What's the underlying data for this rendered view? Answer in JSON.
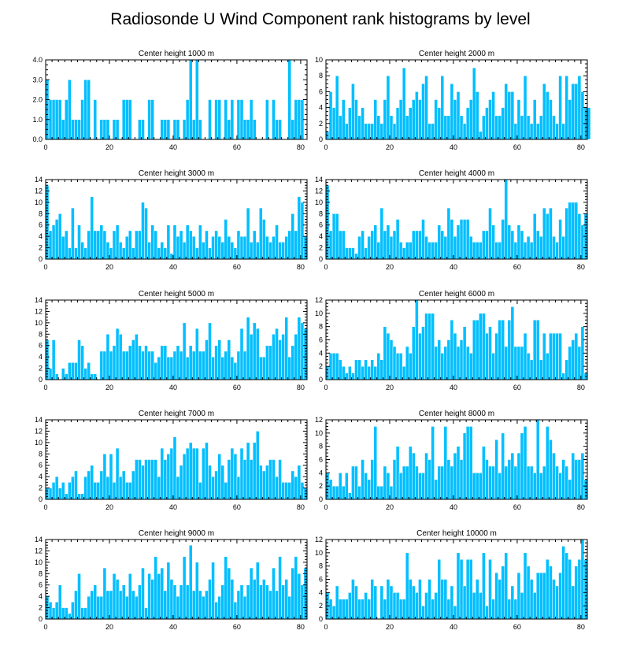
{
  "title": "Radiosonde U Wind Component rank histograms by level",
  "colors": {
    "bar": "#00bfff",
    "axis": "#000000",
    "background": "#ffffff"
  },
  "chart_data": [
    {
      "type": "bar",
      "title": "Center height 1000 m",
      "xlim": [
        0,
        82
      ],
      "xticks": [
        0,
        20,
        40,
        60,
        80
      ],
      "ylim": [
        0,
        4
      ],
      "yticks": [
        0,
        1,
        2,
        3,
        4
      ],
      "ytick_labels": [
        "0.0",
        "1.0",
        "2.0",
        "3.0",
        "4.0"
      ],
      "values": [
        3,
        2,
        2,
        2,
        2,
        1,
        2,
        3,
        1,
        1,
        1,
        2,
        3,
        3,
        0,
        2,
        0,
        1,
        1,
        1,
        0,
        1,
        1,
        0,
        2,
        2,
        2,
        0,
        0,
        1,
        1,
        0,
        2,
        2,
        0,
        0,
        1,
        1,
        1,
        0,
        1,
        1,
        0,
        1,
        2,
        4,
        1,
        4,
        1,
        0,
        0,
        2,
        0,
        2,
        2,
        0,
        2,
        1,
        2,
        0,
        2,
        2,
        1,
        1,
        2,
        1,
        0,
        0,
        0,
        2,
        0,
        2,
        1,
        1,
        0,
        0,
        4,
        1,
        2,
        2,
        2,
        0
      ]
    },
    {
      "type": "bar",
      "title": "Center height 2000 m",
      "xlim": [
        0,
        82
      ],
      "xticks": [
        0,
        20,
        40,
        60,
        80
      ],
      "ylim": [
        0,
        10
      ],
      "yticks": [
        0,
        2,
        4,
        6,
        8,
        10
      ],
      "ytick_labels": [
        "0",
        "2",
        "4",
        "6",
        "8",
        "10"
      ],
      "values": [
        1,
        6,
        4,
        8,
        3,
        5,
        2,
        4,
        7,
        5,
        3,
        4,
        2,
        2,
        2,
        5,
        3,
        2,
        5,
        8,
        3,
        2,
        4,
        5,
        9,
        3,
        4,
        5,
        6,
        5,
        7,
        8,
        2,
        2,
        5,
        4,
        8,
        3,
        3,
        7,
        5,
        6,
        3,
        2,
        4,
        5,
        9,
        6,
        1,
        3,
        4,
        5,
        6,
        3,
        3,
        4,
        7,
        6,
        6,
        2,
        5,
        3,
        8,
        3,
        2,
        5,
        2,
        3,
        7,
        6,
        5,
        3,
        2,
        8,
        2,
        8,
        5,
        7,
        7,
        8,
        6,
        4,
        4
      ]
    },
    {
      "type": "bar",
      "title": "Center height 3000 m",
      "xlim": [
        0,
        82
      ],
      "xticks": [
        0,
        20,
        40,
        60,
        80
      ],
      "ylim": [
        0,
        14
      ],
      "yticks": [
        0,
        2,
        4,
        6,
        8,
        10,
        12,
        14
      ],
      "ytick_labels": [
        "0",
        "2",
        "4",
        "6",
        "8",
        "10",
        "12",
        "14"
      ],
      "values": [
        13,
        5,
        6,
        7,
        8,
        4,
        5,
        2,
        9,
        2,
        6,
        3,
        2,
        5,
        11,
        5,
        5,
        6,
        5,
        3,
        2,
        5,
        6,
        3,
        2,
        4,
        5,
        2,
        5,
        5,
        10,
        9,
        3,
        6,
        5,
        2,
        3,
        2,
        6,
        1,
        6,
        4,
        5,
        3,
        6,
        5,
        4,
        2,
        6,
        3,
        5,
        2,
        4,
        5,
        4,
        3,
        7,
        4,
        3,
        2,
        5,
        4,
        4,
        9,
        3,
        5,
        3,
        9,
        7,
        4,
        3,
        4,
        6,
        3,
        3,
        4,
        5,
        8,
        5,
        11,
        10,
        4
      ]
    },
    {
      "type": "bar",
      "title": "Center height 4000 m",
      "xlim": [
        0,
        82
      ],
      "xticks": [
        0,
        20,
        40,
        60,
        80
      ],
      "ylim": [
        0,
        14
      ],
      "yticks": [
        0,
        2,
        4,
        6,
        8,
        10,
        12,
        14
      ],
      "ytick_labels": [
        "0",
        "2",
        "4",
        "6",
        "8",
        "10",
        "12",
        "14"
      ],
      "values": [
        13,
        5,
        8,
        8,
        5,
        5,
        2,
        2,
        2,
        1,
        4,
        5,
        2,
        4,
        5,
        6,
        3,
        9,
        5,
        6,
        4,
        5,
        7,
        3,
        2,
        3,
        3,
        5,
        5,
        5,
        7,
        4,
        3,
        3,
        3,
        6,
        5,
        4,
        9,
        7,
        4,
        6,
        7,
        7,
        7,
        4,
        3,
        3,
        3,
        5,
        5,
        9,
        6,
        3,
        3,
        7,
        14,
        6,
        5,
        3,
        6,
        5,
        3,
        4,
        3,
        8,
        5,
        4,
        9,
        8,
        9,
        4,
        3,
        7,
        4,
        9,
        10,
        10,
        10,
        8,
        6,
        8
      ]
    },
    {
      "type": "bar",
      "title": "Center height 5000 m",
      "xlim": [
        0,
        82
      ],
      "xticks": [
        0,
        20,
        40,
        60,
        80
      ],
      "ylim": [
        0,
        14
      ],
      "yticks": [
        0,
        2,
        4,
        6,
        8,
        10,
        12,
        14
      ],
      "ytick_labels": [
        "0",
        "2",
        "4",
        "6",
        "8",
        "10",
        "12",
        "14"
      ],
      "values": [
        7,
        2,
        7,
        1,
        0,
        2,
        1,
        3,
        3,
        3,
        7,
        6,
        2,
        3,
        1,
        1,
        0,
        5,
        5,
        8,
        5,
        6,
        9,
        8,
        5,
        5,
        6,
        7,
        8,
        6,
        5,
        6,
        5,
        5,
        3,
        4,
        6,
        6,
        4,
        4,
        5,
        6,
        5,
        10,
        4,
        6,
        5,
        9,
        5,
        5,
        7,
        10,
        4,
        6,
        7,
        4,
        5,
        7,
        4,
        3,
        5,
        9,
        5,
        11,
        8,
        10,
        9,
        4,
        4,
        6,
        6,
        8,
        9,
        7,
        8,
        11,
        4,
        6,
        8,
        11,
        10,
        9
      ]
    },
    {
      "type": "bar",
      "title": "Center height 6000 m",
      "xlim": [
        0,
        82
      ],
      "xticks": [
        0,
        20,
        40,
        60,
        80
      ],
      "ylim": [
        0,
        12
      ],
      "yticks": [
        0,
        2,
        4,
        6,
        8,
        10,
        12
      ],
      "ytick_labels": [
        "0",
        "2",
        "4",
        "6",
        "8",
        "10",
        "12"
      ],
      "values": [
        2,
        4,
        4,
        4,
        3,
        2,
        1,
        2,
        1,
        3,
        3,
        2,
        3,
        2,
        3,
        2,
        4,
        3,
        8,
        7,
        6,
        5,
        4,
        4,
        2,
        5,
        4,
        8,
        12,
        7,
        8,
        10,
        10,
        10,
        5,
        6,
        4,
        5,
        6,
        9,
        7,
        5,
        6,
        8,
        5,
        4,
        9,
        9,
        10,
        10,
        7,
        8,
        4,
        7,
        9,
        9,
        5,
        9,
        11,
        5,
        5,
        5,
        7,
        4,
        3,
        9,
        9,
        3,
        7,
        4,
        7,
        7,
        7,
        7,
        1,
        3,
        5,
        6,
        7,
        5,
        8,
        1
      ]
    },
    {
      "type": "bar",
      "title": "Center height 7000 m",
      "xlim": [
        0,
        82
      ],
      "xticks": [
        0,
        20,
        40,
        60,
        80
      ],
      "ylim": [
        0,
        14
      ],
      "yticks": [
        0,
        2,
        4,
        6,
        8,
        10,
        12,
        14
      ],
      "ytick_labels": [
        "0",
        "2",
        "4",
        "6",
        "8",
        "10",
        "12",
        "14"
      ],
      "values": [
        2,
        2,
        3,
        4,
        2,
        3,
        1,
        3,
        4,
        5,
        1,
        1,
        4,
        5,
        6,
        3,
        3,
        5,
        8,
        4,
        8,
        3,
        9,
        4,
        5,
        3,
        3,
        5,
        7,
        7,
        6,
        7,
        7,
        7,
        7,
        4,
        9,
        7,
        8,
        9,
        11,
        4,
        6,
        8,
        9,
        10,
        9,
        9,
        3,
        9,
        10,
        6,
        4,
        5,
        8,
        6,
        3,
        7,
        9,
        8,
        4,
        9,
        7,
        10,
        7,
        10,
        12,
        6,
        5,
        6,
        7,
        7,
        4,
        7,
        3,
        3,
        3,
        5,
        4,
        6,
        3,
        2
      ]
    },
    {
      "type": "bar",
      "title": "Center height 8000 m",
      "xlim": [
        0,
        82
      ],
      "xticks": [
        0,
        20,
        40,
        60,
        80
      ],
      "ylim": [
        0,
        12
      ],
      "yticks": [
        0,
        2,
        4,
        6,
        8,
        10,
        12
      ],
      "ytick_labels": [
        "0",
        "2",
        "4",
        "6",
        "8",
        "10",
        "12"
      ],
      "values": [
        4,
        3,
        2,
        2,
        4,
        2,
        4,
        1,
        5,
        5,
        2,
        6,
        4,
        3,
        6,
        11,
        2,
        2,
        5,
        4,
        2,
        6,
        8,
        4,
        5,
        5,
        8,
        7,
        5,
        4,
        4,
        7,
        6,
        11,
        3,
        5,
        5,
        11,
        6,
        5,
        7,
        8,
        6,
        10,
        11,
        11,
        4,
        4,
        4,
        8,
        6,
        5,
        5,
        9,
        4,
        10,
        5,
        6,
        7,
        5,
        7,
        10,
        11,
        5,
        5,
        4,
        12,
        4,
        5,
        11,
        9,
        7,
        5,
        4,
        6,
        5,
        3,
        7,
        6,
        6,
        7,
        3
      ]
    },
    {
      "type": "bar",
      "title": "Center height 9000 m",
      "xlim": [
        0,
        82
      ],
      "xticks": [
        0,
        20,
        40,
        60,
        80
      ],
      "ylim": [
        0,
        14
      ],
      "yticks": [
        0,
        2,
        4,
        6,
        8,
        10,
        12,
        14
      ],
      "ytick_labels": [
        "0",
        "2",
        "4",
        "6",
        "8",
        "10",
        "12",
        "14"
      ],
      "values": [
        4,
        3,
        2,
        3,
        6,
        2,
        2,
        1,
        3,
        5,
        8,
        2,
        2,
        4,
        5,
        6,
        4,
        4,
        9,
        5,
        5,
        8,
        7,
        5,
        6,
        4,
        8,
        5,
        4,
        6,
        9,
        2,
        8,
        7,
        11,
        8,
        9,
        5,
        10,
        7,
        6,
        4,
        6,
        11,
        6,
        13,
        5,
        10,
        5,
        4,
        5,
        7,
        10,
        3,
        4,
        6,
        11,
        9,
        7,
        3,
        5,
        6,
        4,
        6,
        9,
        7,
        10,
        6,
        7,
        6,
        5,
        9,
        5,
        11,
        6,
        7,
        4,
        9,
        11,
        8,
        6,
        9
      ]
    },
    {
      "type": "bar",
      "title": "Center height 10000 m",
      "xlim": [
        0,
        82
      ],
      "xticks": [
        0,
        20,
        40,
        60,
        80
      ],
      "ylim": [
        0,
        12
      ],
      "yticks": [
        0,
        2,
        4,
        6,
        8,
        10,
        12
      ],
      "ytick_labels": [
        "0",
        "2",
        "4",
        "6",
        "8",
        "10",
        "12"
      ],
      "values": [
        4,
        3,
        2,
        5,
        3,
        3,
        3,
        4,
        6,
        5,
        3,
        3,
        4,
        3,
        6,
        5,
        0,
        5,
        3,
        6,
        5,
        4,
        4,
        3,
        3,
        10,
        6,
        5,
        4,
        6,
        2,
        4,
        6,
        3,
        4,
        9,
        6,
        6,
        3,
        5,
        2,
        10,
        9,
        5,
        9,
        9,
        4,
        6,
        4,
        10,
        2,
        9,
        3,
        7,
        6,
        8,
        10,
        3,
        5,
        3,
        7,
        4,
        10,
        8,
        6,
        4,
        7,
        7,
        7,
        9,
        8,
        6,
        5,
        7,
        11,
        10,
        9,
        5,
        8,
        9,
        12,
        9
      ]
    }
  ]
}
